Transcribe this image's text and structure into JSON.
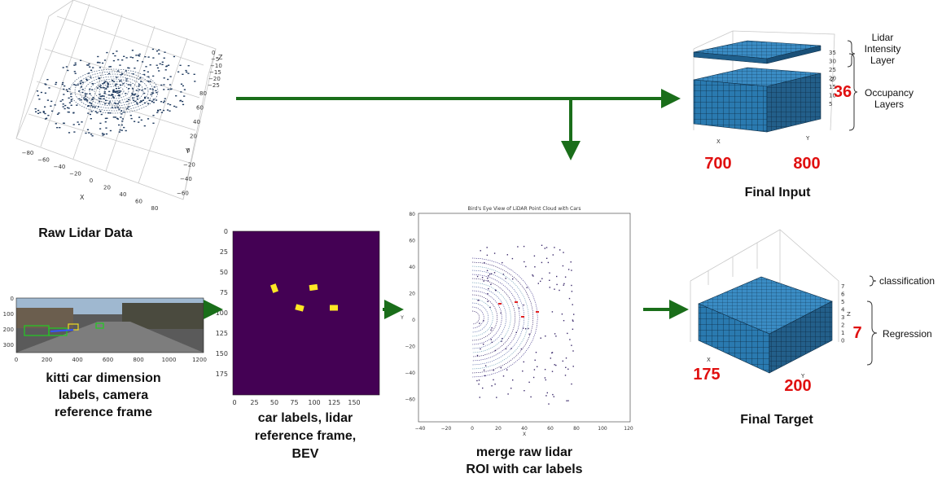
{
  "raw_lidar": {
    "caption": "Raw Lidar Data",
    "z_ticks": [
      "0",
      "−5",
      "−10",
      "−15",
      "−20",
      "−25"
    ],
    "z_label": "Z",
    "y_ticks": [
      "80",
      "60",
      "40",
      "20",
      "0",
      "−20",
      "−40",
      "−60"
    ],
    "y_label": "Y",
    "x_ticks": [
      "−80",
      "−60",
      "−40",
      "−20",
      "0",
      "20",
      "40",
      "60",
      "80"
    ],
    "x_label": "X",
    "point_color": "#1f3a5f"
  },
  "kitti": {
    "caption_lines": [
      "kitti car dimension",
      "labels, camera",
      "reference frame"
    ],
    "y_ticks": [
      "0",
      "100",
      "200",
      "300"
    ],
    "x_ticks": [
      "0",
      "200",
      "400",
      "600",
      "800",
      "1000",
      "1200"
    ]
  },
  "bev_labels": {
    "caption_lines": [
      "car labels, lidar",
      "reference frame,",
      "BEV"
    ],
    "y_ticks": [
      "0",
      "25",
      "50",
      "75",
      "100",
      "125",
      "150",
      "175"
    ],
    "x_ticks": [
      "0",
      "25",
      "50",
      "75",
      "100",
      "125",
      "150"
    ],
    "background_color": "#440154",
    "car_color": "#fde725"
  },
  "merge": {
    "title": "Bird's Eye View of LiDAR Point Cloud with Cars",
    "caption_lines": [
      "merge raw lidar",
      "ROI with car labels"
    ],
    "y_ticks": [
      "80",
      "60",
      "40",
      "20",
      "0",
      "−20",
      "−40",
      "−60"
    ],
    "x_ticks": [
      "−40",
      "−20",
      "0",
      "20",
      "40",
      "60",
      "80",
      "100",
      "120"
    ],
    "x_label": "X",
    "y_label": "Y"
  },
  "final_input": {
    "caption": "Final Input",
    "dim_x": "700",
    "dim_y": "800",
    "dim_z": "36",
    "z_ticks": [
      "35",
      "30",
      "25",
      "20",
      "15",
      "10",
      "5"
    ],
    "axis_x": "X",
    "axis_y": "Y",
    "axis_z": "Z",
    "intensity_label_lines": [
      "Lidar",
      "Intensity",
      "Layer"
    ],
    "occupancy_label_lines": [
      "Occupancy",
      "Layers"
    ],
    "cube_color": "#2a7ab0"
  },
  "final_target": {
    "caption": "Final Target",
    "dim_x": "175",
    "dim_y": "200",
    "dim_z": "7",
    "z_ticks": [
      "7",
      "6",
      "5",
      "4",
      "3",
      "2",
      "1",
      "0"
    ],
    "axis_x": "X",
    "axis_y": "Y",
    "axis_z": "Z",
    "classification_label": "classification",
    "regression_label": "Regression",
    "cube_color": "#2a7ab0"
  },
  "arrow_color": "#1a6e1a"
}
